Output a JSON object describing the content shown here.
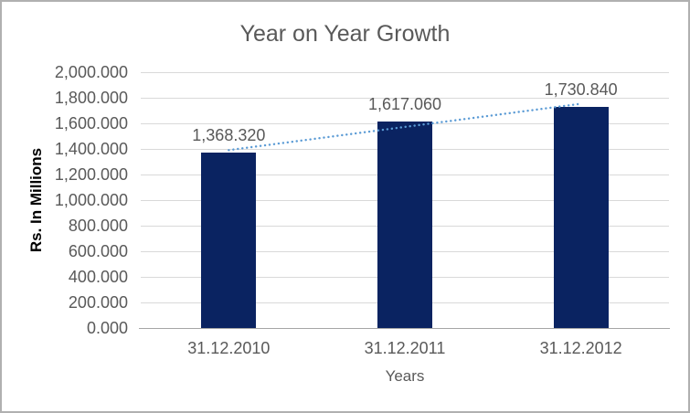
{
  "chart": {
    "title": "Year on Year Growth",
    "x_axis_title": "Years",
    "y_axis_title": "Rs. In Millions"
  },
  "chart_data": {
    "type": "bar",
    "title": "Year on Year Growth",
    "xlabel": "Years",
    "ylabel": "Rs. In Millions",
    "categories": [
      "31.12.2010",
      "31.12.2011",
      "31.12.2012"
    ],
    "values": [
      1368.32,
      1617.06,
      1730.84
    ],
    "data_labels": [
      "1,368.320",
      "1,617.060",
      "1,730.840"
    ],
    "y_ticks": [
      "0.000",
      "200.000",
      "400.000",
      "600.000",
      "800.000",
      "1,000.000",
      "1,200.000",
      "1,400.000",
      "1,600.000",
      "1,800.000",
      "2,000.000"
    ],
    "ylim": [
      0,
      2000
    ],
    "grid": true,
    "legend": "none",
    "trendline": {
      "type": "linear",
      "style": "dotted"
    },
    "colors": {
      "bar": "#0a2361",
      "trendline": "#5b9bd5",
      "gridline": "#d9d9d9",
      "axis_line": "#a6a6a6",
      "text": "#595959",
      "y_axis_title_text": "#000000",
      "border": "#b0b0b0"
    }
  }
}
